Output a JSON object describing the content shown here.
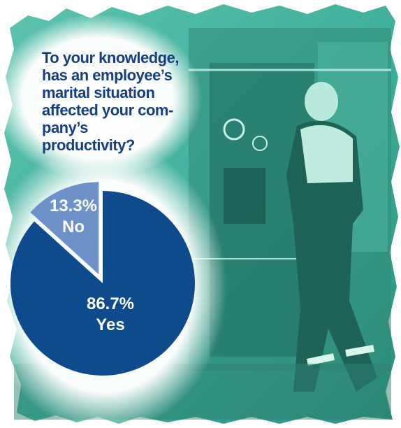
{
  "question": {
    "lines": [
      "To your knowledge,",
      "has an employee’s",
      "marital situation",
      "affected your com-",
      "pany’s productivity?"
    ]
  },
  "colors": {
    "yes": "#0f4b8c",
    "no": "#6e92c8",
    "question_text": "#163f82",
    "photo_tint": "#3fae99",
    "halo": "#ffffff"
  },
  "background_photo": {
    "icon": "firefighter-at-fire-engine-pump-panel-photo"
  },
  "chart_data": {
    "type": "pie",
    "slices": [
      {
        "name": "Yes",
        "value": 86.7,
        "label": "86.7%",
        "color": "#0f4b8c"
      },
      {
        "name": "No",
        "value": 13.3,
        "label": "13.3%",
        "color": "#6e92c8",
        "exploded": true
      }
    ]
  }
}
